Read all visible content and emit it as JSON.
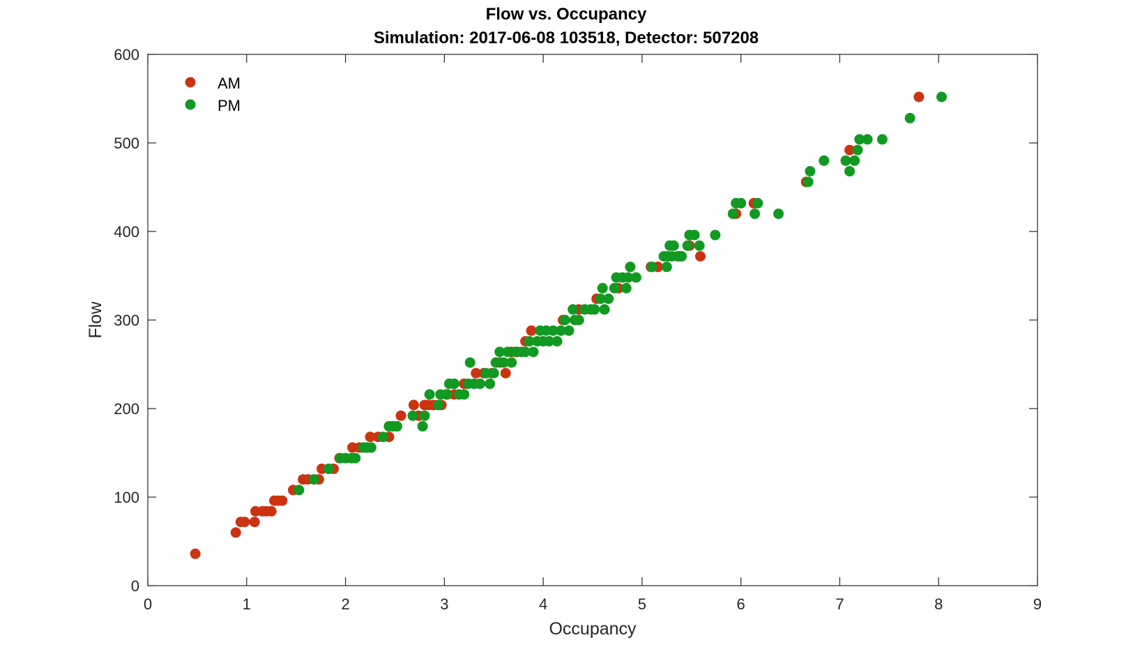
{
  "chart_data": {
    "type": "scatter",
    "title": "Flow vs. Occupancy",
    "subtitle": "Simulation:  2017-06-08 103518,  Detector:  507208",
    "xlabel": "Occupancy",
    "ylabel": "Flow",
    "xlim": [
      0,
      9
    ],
    "ylim": [
      0,
      600
    ],
    "xticks": [
      0,
      1,
      2,
      3,
      4,
      5,
      6,
      7,
      8,
      9
    ],
    "yticks": [
      0,
      100,
      200,
      300,
      400,
      500,
      600
    ],
    "grid": false,
    "legend_position": "top-left",
    "series": [
      {
        "name": "AM",
        "color": "#cc3311",
        "points": [
          [
            0.48,
            36
          ],
          [
            0.89,
            60
          ],
          [
            0.94,
            72
          ],
          [
            0.98,
            72
          ],
          [
            1.08,
            72
          ],
          [
            1.09,
            84
          ],
          [
            1.16,
            84
          ],
          [
            1.2,
            84
          ],
          [
            1.25,
            84
          ],
          [
            1.28,
            96
          ],
          [
            1.32,
            96
          ],
          [
            1.36,
            96
          ],
          [
            1.47,
            108
          ],
          [
            1.57,
            120
          ],
          [
            1.62,
            120
          ],
          [
            1.73,
            120
          ],
          [
            1.76,
            132
          ],
          [
            1.88,
            132
          ],
          [
            1.94,
            144
          ],
          [
            2.07,
            156
          ],
          [
            2.14,
            156
          ],
          [
            2.25,
            168
          ],
          [
            2.33,
            168
          ],
          [
            2.44,
            168
          ],
          [
            2.52,
            180
          ],
          [
            2.56,
            192
          ],
          [
            2.69,
            204
          ],
          [
            2.74,
            192
          ],
          [
            2.8,
            204
          ],
          [
            2.84,
            204
          ],
          [
            2.89,
            204
          ],
          [
            2.97,
            204
          ],
          [
            3.03,
            216
          ],
          [
            3.1,
            216
          ],
          [
            3.2,
            228
          ],
          [
            3.32,
            240
          ],
          [
            3.4,
            240
          ],
          [
            3.48,
            240
          ],
          [
            3.56,
            252
          ],
          [
            3.62,
            240
          ],
          [
            3.68,
            264
          ],
          [
            3.74,
            264
          ],
          [
            3.82,
            276
          ],
          [
            3.88,
            288
          ],
          [
            4.2,
            300
          ],
          [
            4.36,
            312
          ],
          [
            4.54,
            324
          ],
          [
            4.76,
            336
          ],
          [
            5.09,
            360
          ],
          [
            5.16,
            360
          ],
          [
            5.38,
            372
          ],
          [
            5.48,
            384
          ],
          [
            5.59,
            372
          ],
          [
            5.95,
            420
          ],
          [
            6.13,
            432
          ],
          [
            6.66,
            456
          ],
          [
            7.1,
            492
          ],
          [
            7.8,
            552
          ]
        ]
      },
      {
        "name": "PM",
        "color": "#119922",
        "points": [
          [
            1.53,
            108
          ],
          [
            1.68,
            120
          ],
          [
            1.83,
            132
          ],
          [
            1.95,
            144
          ],
          [
            2.0,
            144
          ],
          [
            2.06,
            144
          ],
          [
            2.1,
            144
          ],
          [
            2.18,
            156
          ],
          [
            2.22,
            156
          ],
          [
            2.26,
            156
          ],
          [
            2.38,
            168
          ],
          [
            2.44,
            180
          ],
          [
            2.48,
            180
          ],
          [
            2.52,
            180
          ],
          [
            2.68,
            192
          ],
          [
            2.78,
            180
          ],
          [
            2.8,
            192
          ],
          [
            2.85,
            216
          ],
          [
            2.94,
            204
          ],
          [
            2.96,
            216
          ],
          [
            3.02,
            216
          ],
          [
            3.05,
            228
          ],
          [
            3.1,
            228
          ],
          [
            3.15,
            216
          ],
          [
            3.2,
            216
          ],
          [
            3.24,
            228
          ],
          [
            3.26,
            252
          ],
          [
            3.3,
            228
          ],
          [
            3.36,
            228
          ],
          [
            3.42,
            240
          ],
          [
            3.46,
            228
          ],
          [
            3.5,
            240
          ],
          [
            3.52,
            252
          ],
          [
            3.56,
            264
          ],
          [
            3.6,
            252
          ],
          [
            3.64,
            264
          ],
          [
            3.68,
            252
          ],
          [
            3.72,
            264
          ],
          [
            3.78,
            264
          ],
          [
            3.82,
            264
          ],
          [
            3.86,
            276
          ],
          [
            3.9,
            264
          ],
          [
            3.94,
            276
          ],
          [
            3.97,
            288
          ],
          [
            4.0,
            276
          ],
          [
            4.03,
            288
          ],
          [
            4.06,
            276
          ],
          [
            4.1,
            288
          ],
          [
            4.14,
            276
          ],
          [
            4.18,
            288
          ],
          [
            4.22,
            300
          ],
          [
            4.26,
            288
          ],
          [
            4.3,
            312
          ],
          [
            4.32,
            300
          ],
          [
            4.36,
            300
          ],
          [
            4.42,
            312
          ],
          [
            4.48,
            312
          ],
          [
            4.52,
            312
          ],
          [
            4.58,
            324
          ],
          [
            4.6,
            336
          ],
          [
            4.62,
            312
          ],
          [
            4.66,
            324
          ],
          [
            4.72,
            336
          ],
          [
            4.74,
            348
          ],
          [
            4.8,
            348
          ],
          [
            4.84,
            336
          ],
          [
            4.86,
            348
          ],
          [
            4.88,
            360
          ],
          [
            4.94,
            348
          ],
          [
            5.1,
            360
          ],
          [
            5.22,
            372
          ],
          [
            5.25,
            360
          ],
          [
            5.26,
            372
          ],
          [
            5.28,
            384
          ],
          [
            5.3,
            372
          ],
          [
            5.32,
            384
          ],
          [
            5.36,
            372
          ],
          [
            5.4,
            372
          ],
          [
            5.46,
            384
          ],
          [
            5.48,
            396
          ],
          [
            5.53,
            396
          ],
          [
            5.58,
            384
          ],
          [
            5.74,
            396
          ],
          [
            5.92,
            420
          ],
          [
            5.95,
            432
          ],
          [
            6.0,
            432
          ],
          [
            6.14,
            420
          ],
          [
            6.17,
            432
          ],
          [
            6.38,
            420
          ],
          [
            6.68,
            456
          ],
          [
            6.7,
            468
          ],
          [
            6.84,
            480
          ],
          [
            7.06,
            480
          ],
          [
            7.1,
            468
          ],
          [
            7.15,
            480
          ],
          [
            7.18,
            492
          ],
          [
            7.2,
            504
          ],
          [
            7.28,
            504
          ],
          [
            7.43,
            504
          ],
          [
            7.71,
            528
          ],
          [
            8.03,
            552
          ]
        ]
      }
    ]
  }
}
